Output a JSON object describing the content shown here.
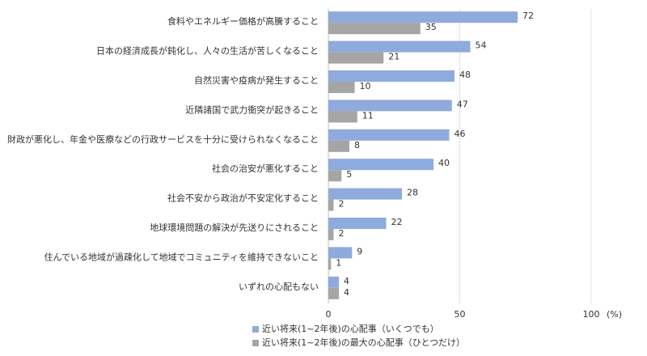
{
  "chart_data": {
    "type": "bar",
    "orientation": "horizontal",
    "categories": [
      "食料やエネルギー価格が高騰すること",
      "日本の経済成長が鈍化し、人々の生活が苦しくなること",
      "自然災害や疫病が発生すること",
      "近隣諸国で武力衝突が起きること",
      "財政が悪化し、年金や医療などの行政サービスを十分に受けられなくなること",
      "社会の治安が悪化すること",
      "社会不安から政治が不安定化すること",
      "地球環境問題の解決が先送りにされること",
      "住んでいる地域が過疎化して地域でコミュニティを維持できないこと",
      "いずれの心配もない"
    ],
    "series": [
      {
        "name": "近い将来(1~2年後)の心配事（いくつでも）",
        "color": "#8faadc",
        "values": [
          72,
          54,
          48,
          47,
          46,
          40,
          28,
          22,
          9,
          4
        ]
      },
      {
        "name": "近い将来(1~2年後)の最大の心配事（ひとつだけ）",
        "color": "#a5a5a5",
        "values": [
          35,
          21,
          10,
          11,
          8,
          5,
          2,
          2,
          1,
          4
        ]
      }
    ],
    "xlim": [
      0,
      100
    ],
    "xticks": [
      0,
      50,
      100
    ],
    "xlabel": "(%)",
    "grid": true,
    "legend": "bottom"
  }
}
